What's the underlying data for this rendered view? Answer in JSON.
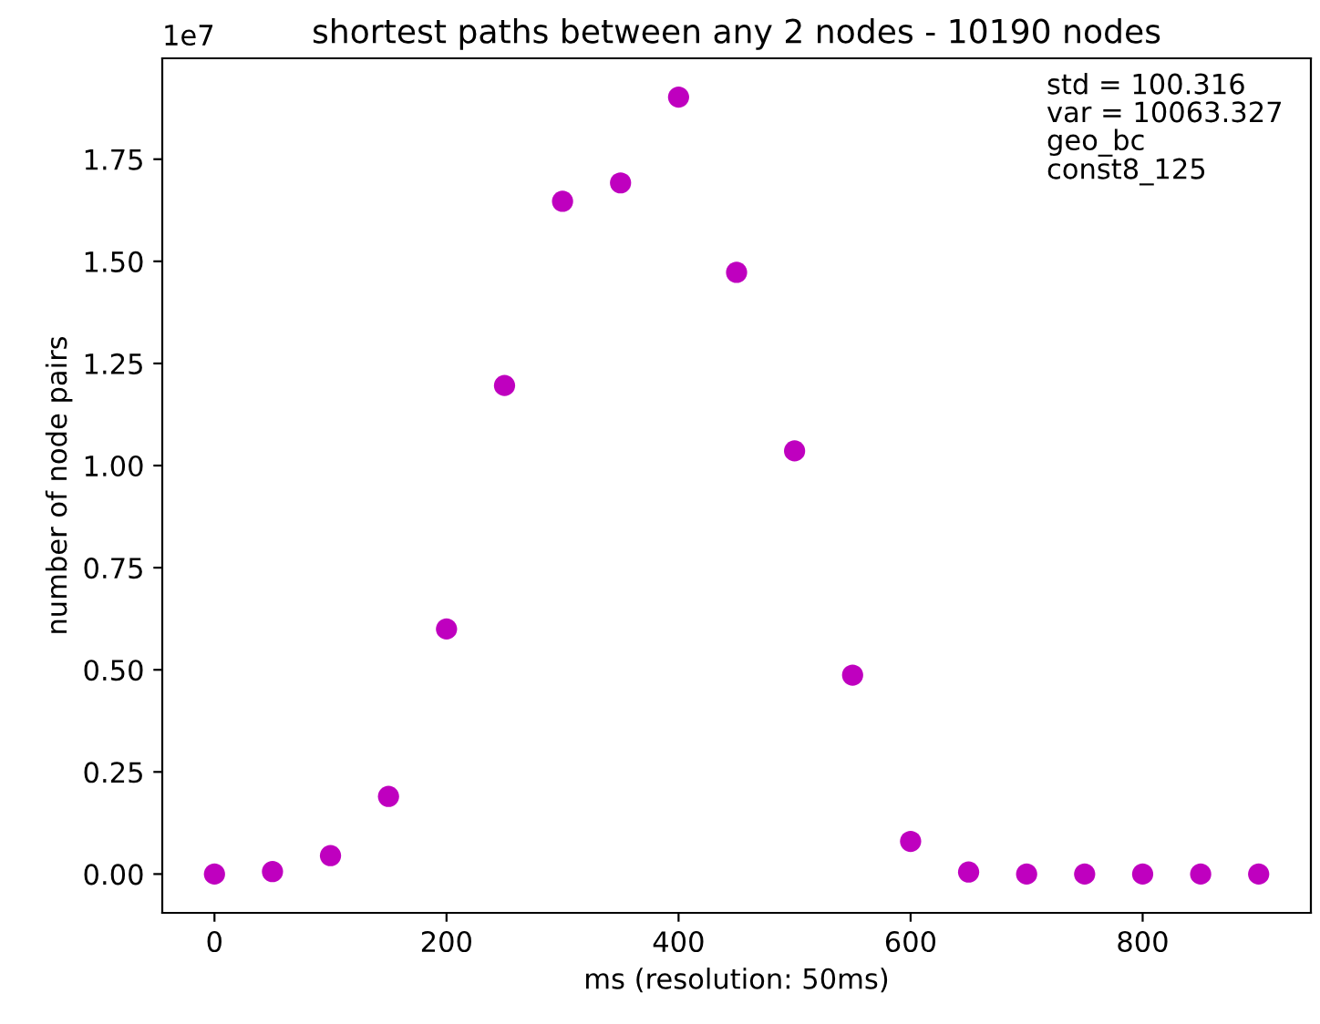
{
  "chart_data": {
    "type": "scatter",
    "title": "shortest paths between any 2 nodes - 10190 nodes",
    "xlabel": "ms (resolution: 50ms)",
    "ylabel": "number of node pairs",
    "x": [
      0,
      50,
      100,
      150,
      200,
      250,
      300,
      350,
      400,
      450,
      500,
      550,
      600,
      650,
      700,
      750,
      800,
      850,
      900
    ],
    "series": [
      {
        "color": "#bf00bf",
        "values": [
          0,
          0.006,
          0.045,
          0.19,
          0.6,
          1.196,
          1.647,
          1.692,
          1.902,
          1.473,
          1.036,
          0.487,
          0.08,
          0.005,
          0,
          0,
          0,
          0,
          0
        ]
      }
    ],
    "xlim": [
      -45,
      945
    ],
    "ylim": [
      -0.095,
      1.997
    ],
    "xticks": [
      0,
      200,
      400,
      600,
      800
    ],
    "yticks": [
      {
        "value": 0,
        "label": "0.00"
      },
      {
        "value": 0.25,
        "label": "0.25"
      },
      {
        "value": 0.5,
        "label": "0.50"
      },
      {
        "value": 0.75,
        "label": "0.75"
      },
      {
        "value": 1.0,
        "label": "1.00"
      },
      {
        "value": 1.25,
        "label": "1.25"
      },
      {
        "value": 1.5,
        "label": "1.50"
      },
      {
        "value": 1.75,
        "label": "1.75"
      }
    ],
    "annotations": [
      "1e7",
      "std = 100.316",
      "var = 10063.327",
      "geo_bc",
      "const8_125"
    ],
    "marker": "circle",
    "grid": false
  }
}
